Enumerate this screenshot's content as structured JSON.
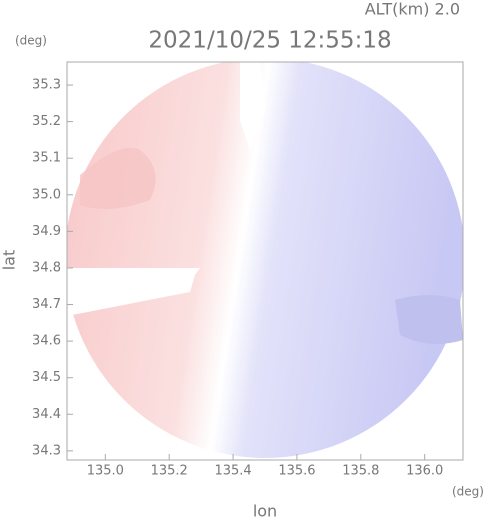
{
  "chart_data": {
    "type": "map",
    "title": "2021/10/25 12:55:18",
    "annotation": "ALT(km) 2.0",
    "x_label": "lon",
    "y_label": "lat",
    "x_unit": "(deg)",
    "y_unit": "(deg)",
    "xlim": [
      134.88,
      136.12
    ],
    "ylim": [
      34.275,
      35.363
    ],
    "xticks": [
      {
        "value": 135,
        "label": "135.0"
      },
      135.2,
      135.4,
      135.6,
      135.8,
      {
        "value": 136,
        "label": "136.0"
      }
    ],
    "yticks": [
      34.3,
      34.4,
      34.5,
      34.6,
      34.7,
      34.8,
      34.9,
      {
        "value": 35,
        "label": "35.0"
      },
      35.1,
      35.2,
      35.3
    ]
  }
}
